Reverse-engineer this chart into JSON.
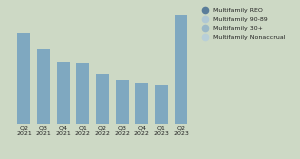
{
  "categories": [
    "Q2\n2021",
    "Q3\n2021",
    "Q4\n2021",
    "Q1\n2022",
    "Q2\n2022",
    "Q3\n2022",
    "Q4\n2022",
    "Q1\n2023",
    "Q2\n2023"
  ],
  "values": [
    88,
    72,
    60,
    59,
    48,
    42,
    40,
    38,
    105
  ],
  "bar_color": "#7fa8c0",
  "background_color": "#cdd9c5",
  "legend_items": [
    {
      "label": "Multifamily REO",
      "color": "#5a7d9a"
    },
    {
      "label": "Multifamily 90-89",
      "color": "#b0c8d4"
    },
    {
      "label": "Multifamily 30+",
      "color": "#9ab8c8"
    },
    {
      "label": "Multifamily Nonaccrual",
      "color": "#b8cfd8"
    }
  ],
  "ylim": [
    0,
    115
  ],
  "tick_fontsize": 4.5,
  "legend_fontsize": 4.5,
  "bar_width": 0.65
}
